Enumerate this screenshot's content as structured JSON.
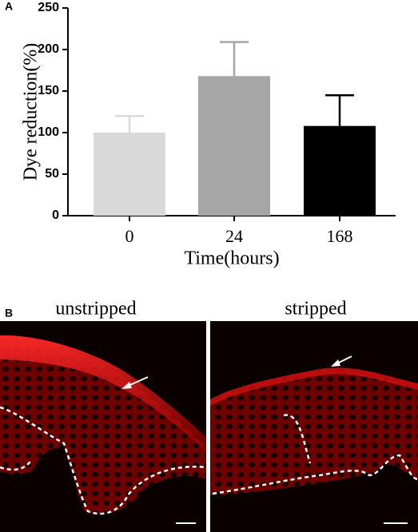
{
  "panel_a_label": "A",
  "chart_data": {
    "type": "bar",
    "y_label": "Dye reduction(%)",
    "x_label": "Time(hours)",
    "categories": [
      "0",
      "24",
      "168"
    ],
    "values": [
      100,
      168,
      108
    ],
    "errors": [
      20,
      41,
      37
    ],
    "colors": [
      "#d9d9d9",
      "#a6a6a6",
      "#000000"
    ],
    "ylim": [
      0,
      250
    ],
    "yticks": [
      0,
      50,
      100,
      150,
      200,
      250
    ],
    "grid": false
  },
  "panel_b": {
    "label": "B",
    "images": [
      {
        "label": "unstripped"
      },
      {
        "label": "stripped"
      }
    ]
  }
}
